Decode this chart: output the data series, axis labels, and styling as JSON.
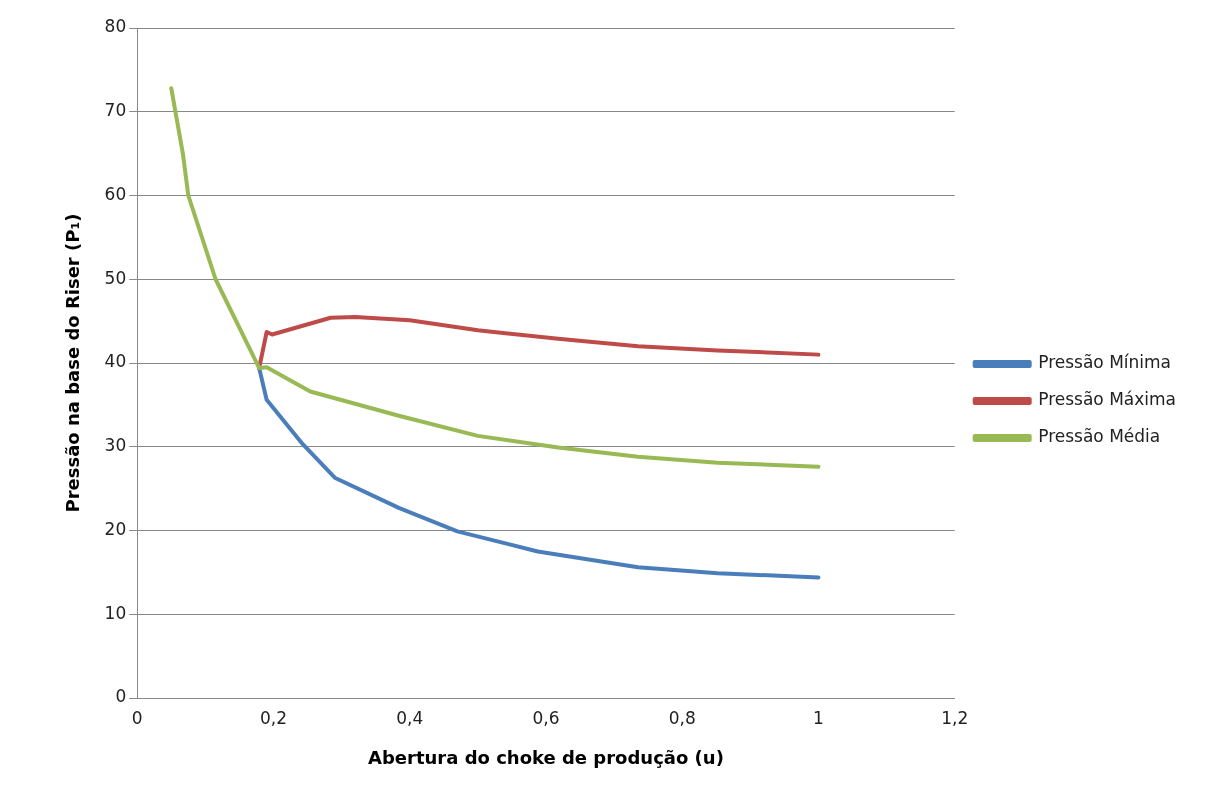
{
  "chart_data": {
    "type": "line",
    "xlabel": "Abertura do choke de produção (u)",
    "ylabel": "Pressão na base do Riser (P₁)",
    "xlim": [
      0,
      1.2
    ],
    "xticks": [
      0,
      {
        "value": 0.2,
        "label": "0,2"
      },
      {
        "value": 0.4,
        "label": "0,4"
      },
      {
        "value": 0.6,
        "label": "0,6"
      },
      {
        "value": 0.8,
        "label": "0,8"
      },
      1,
      {
        "value": 1.2,
        "label": "1,2"
      }
    ],
    "ylim": [
      0,
      80
    ],
    "yticks": [
      0,
      10,
      20,
      30,
      40,
      50,
      60,
      70,
      80
    ],
    "grid": "y",
    "legend": "right",
    "marker": "none",
    "line_style": "solid",
    "series": [
      {
        "name": "Pressão Mínima",
        "color": "#4a7ebb",
        "x": [
          0.179,
          0.19,
          0.243,
          0.29,
          0.384,
          0.47,
          0.588,
          0.735,
          0.852,
          1.0
        ],
        "values": [
          39.4,
          35.6,
          30.3,
          26.3,
          22.7,
          19.9,
          17.5,
          15.6,
          14.9,
          14.4
        ]
      },
      {
        "name": "Pressão Máxima",
        "color": "#be4b48",
        "x": [
          0.179,
          0.19,
          0.198,
          0.284,
          0.32,
          0.4,
          0.5,
          0.618,
          0.735,
          0.852,
          1.0
        ],
        "values": [
          39.4,
          43.7,
          43.4,
          45.4,
          45.5,
          45.1,
          43.9,
          42.9,
          42.0,
          41.5,
          41.0
        ]
      },
      {
        "name": "Pressão Média",
        "color": "#98b954",
        "x": [
          0.05,
          0.067,
          0.075,
          0.115,
          0.179,
          0.19,
          0.254,
          0.384,
          0.5,
          0.618,
          0.735,
          0.852,
          1.0
        ],
        "values": [
          72.8,
          65,
          60,
          50,
          39.4,
          39.5,
          36.6,
          33.7,
          31.3,
          29.9,
          28.8,
          28.1,
          27.6
        ]
      }
    ]
  }
}
